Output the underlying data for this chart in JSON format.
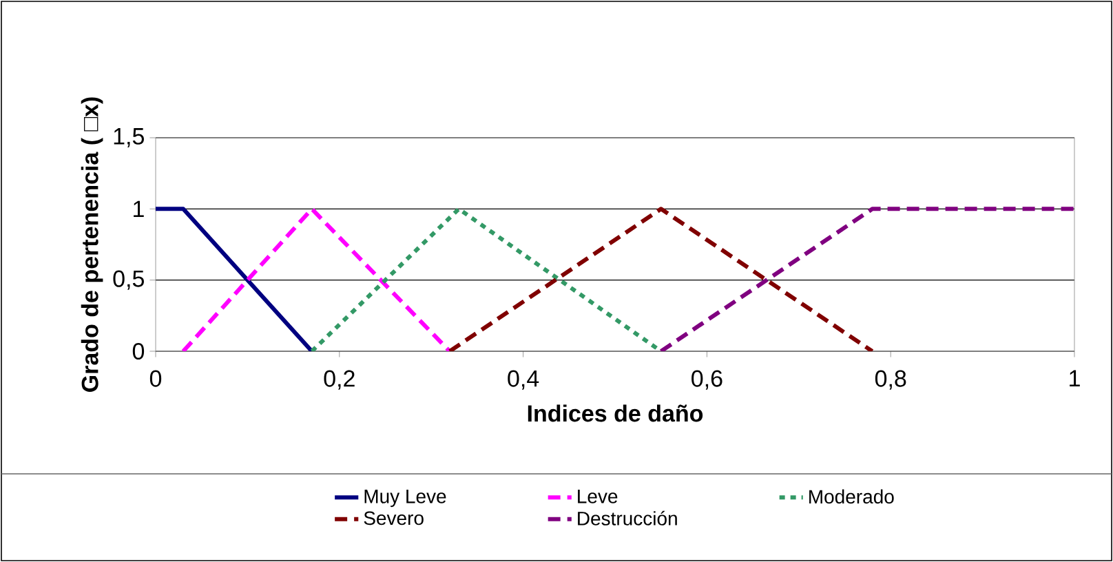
{
  "chart_data": {
    "type": "line",
    "xlabel": "Indices de daño",
    "ylabel": "Grado de pertenencia ( □x)",
    "xlim": [
      0,
      1
    ],
    "ylim": [
      0,
      1.5
    ],
    "xticks": [
      {
        "value": 0,
        "label": "0"
      },
      {
        "value": 0.2,
        "label": "0,2"
      },
      {
        "value": 0.4,
        "label": "0,4"
      },
      {
        "value": 0.6,
        "label": "0,6"
      },
      {
        "value": 0.8,
        "label": "0,8"
      },
      {
        "value": 1,
        "label": "1"
      }
    ],
    "yticks": [
      {
        "value": 0,
        "label": "0"
      },
      {
        "value": 0.5,
        "label": "0,5"
      },
      {
        "value": 1,
        "label": "1"
      },
      {
        "value": 1.5,
        "label": "1,5"
      }
    ],
    "grid": "y",
    "legend": "bottom",
    "marker": "none",
    "series": [
      {
        "name": "Muy Leve",
        "color": "#000080",
        "line_style": "solid",
        "x": [
          0,
          0.03,
          0.17
        ],
        "values": [
          1,
          1,
          0
        ]
      },
      {
        "name": "Leve",
        "color": "#ff00ff",
        "line_style": "dashed",
        "x": [
          0.03,
          0.17,
          0.32
        ],
        "values": [
          0,
          1,
          0
        ]
      },
      {
        "name": "Moderado",
        "color": "#339966",
        "line_style": "dotted",
        "x": [
          0.17,
          0.33,
          0.55
        ],
        "values": [
          0,
          1,
          0
        ]
      },
      {
        "name": "Severo",
        "color": "#800000",
        "line_style": "dashed",
        "x": [
          0.32,
          0.55,
          0.78
        ],
        "values": [
          0,
          1,
          0
        ]
      },
      {
        "name": "Destrucción",
        "color": "#800080",
        "line_style": "dashed",
        "x": [
          0.55,
          0.78,
          1
        ],
        "values": [
          0,
          1,
          1
        ]
      }
    ]
  }
}
